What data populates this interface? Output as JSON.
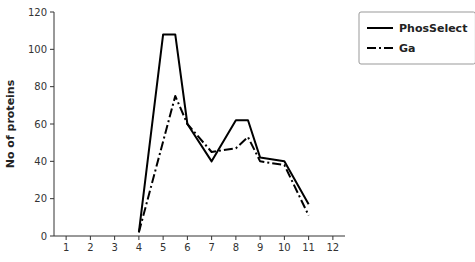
{
  "chart_data": {
    "type": "line",
    "ylabel": "No of proteins",
    "xlim": [
      0.5,
      12.5
    ],
    "ylim": [
      0,
      120
    ],
    "xticks": [
      1,
      2,
      3,
      4,
      5,
      6,
      7,
      8,
      9,
      10,
      11,
      12
    ],
    "yticks": [
      0,
      20,
      40,
      60,
      80,
      100,
      120
    ],
    "grid": false,
    "legend": "right",
    "series": [
      {
        "name": "PhosSelect",
        "color": "#000000",
        "line_style": "solid",
        "x": [
          4,
          5,
          5.5,
          6,
          7,
          8,
          8.5,
          9,
          10,
          11
        ],
        "values": [
          2,
          108,
          108,
          60,
          40,
          62,
          62,
          42,
          40,
          17
        ]
      },
      {
        "name": "Ga",
        "color": "#000000",
        "line_style": "dashdot",
        "x": [
          4,
          5.5,
          6,
          7,
          8,
          8.5,
          9,
          10,
          11
        ],
        "values": [
          2,
          75,
          60,
          45,
          47,
          53,
          40,
          38,
          11
        ]
      }
    ]
  }
}
